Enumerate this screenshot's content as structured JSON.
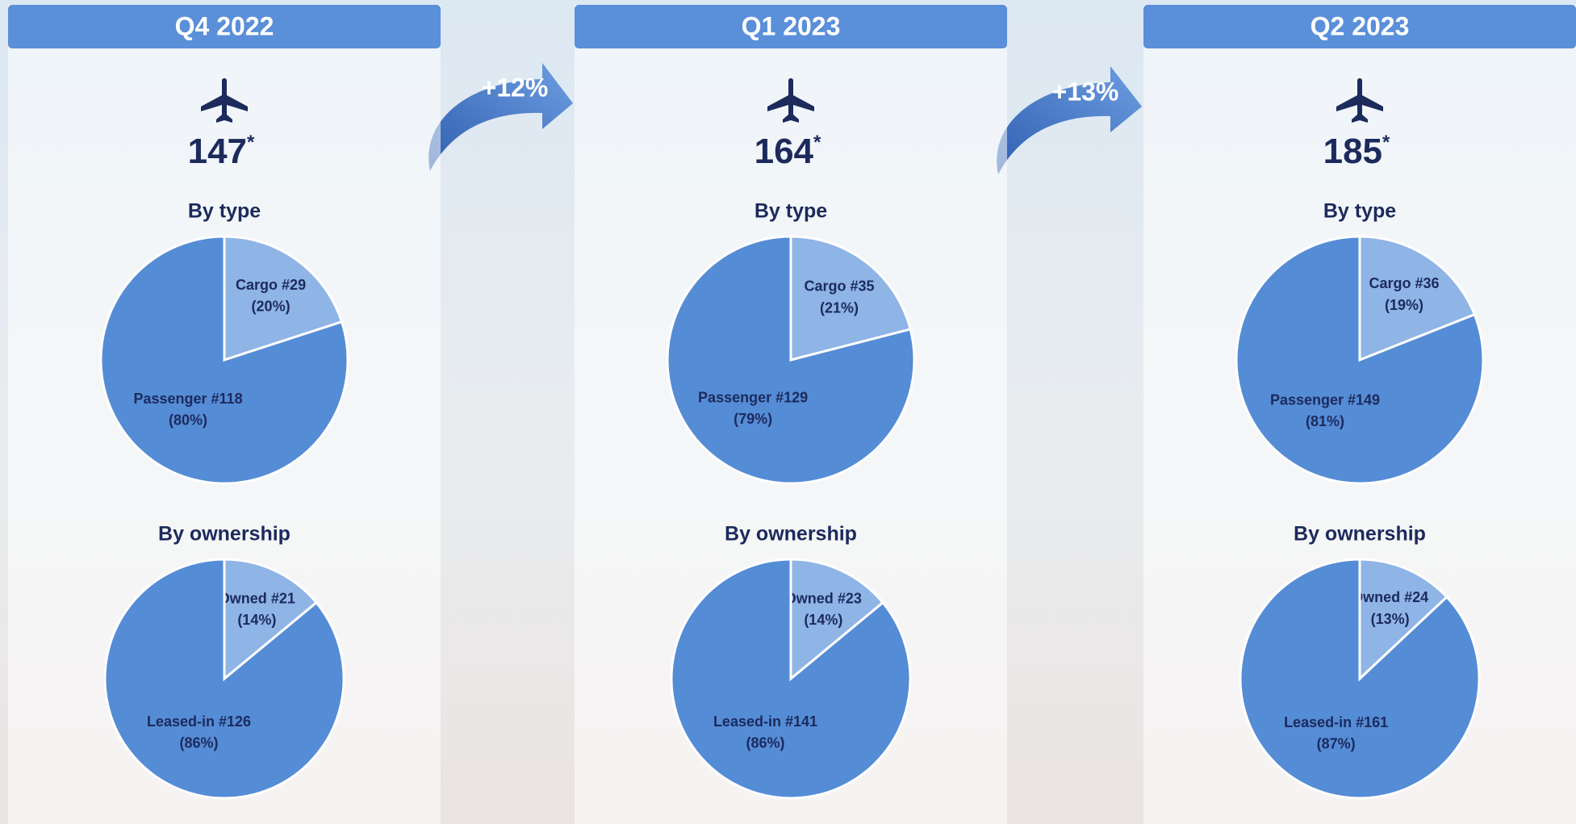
{
  "panels": [
    {
      "quarter": "Q4 2022",
      "total": 147,
      "total_mark": "*"
    },
    {
      "quarter": "Q1 2023",
      "total": 164,
      "total_mark": "*"
    },
    {
      "quarter": "Q2 2023",
      "total": 185,
      "total_mark": "*"
    }
  ],
  "growth": [
    "+12%",
    "+13%"
  ],
  "chart_data": [
    {
      "type": "pie",
      "title": "By type",
      "categories": [
        "Cargo",
        "Passenger"
      ],
      "count_labels": [
        "#29",
        "#118"
      ],
      "values": [
        20,
        80
      ],
      "value_labels": [
        "(20%)",
        "(80%)"
      ],
      "colors": [
        "#8fb4e6",
        "#558cd6"
      ]
    },
    {
      "type": "pie",
      "title": "By ownership",
      "categories": [
        "Owned",
        "Leased-in"
      ],
      "count_labels": [
        "#21",
        "#126"
      ],
      "values": [
        14,
        86
      ],
      "value_labels": [
        "(14%)",
        "(86%)"
      ],
      "colors": [
        "#8fb4e6",
        "#558cd6"
      ]
    },
    {
      "type": "pie",
      "title": "By type",
      "categories": [
        "Cargo",
        "Passenger"
      ],
      "count_labels": [
        "#35",
        "#129"
      ],
      "values": [
        21,
        79
      ],
      "value_labels": [
        "(21%)",
        "(79%)"
      ],
      "colors": [
        "#8fb4e6",
        "#558cd6"
      ]
    },
    {
      "type": "pie",
      "title": "By ownership",
      "categories": [
        "Owned",
        "Leased-in"
      ],
      "count_labels": [
        "#23",
        "#141"
      ],
      "values": [
        14,
        86
      ],
      "value_labels": [
        "(14%)",
        "(86%)"
      ],
      "colors": [
        "#8fb4e6",
        "#558cd6"
      ]
    },
    {
      "type": "pie",
      "title": "By type",
      "categories": [
        "Cargo",
        "Passenger"
      ],
      "count_labels": [
        "#36",
        "#149"
      ],
      "values": [
        19,
        81
      ],
      "value_labels": [
        "(19%)",
        "(81%)"
      ],
      "colors": [
        "#8fb4e6",
        "#558cd6"
      ]
    },
    {
      "type": "pie",
      "title": "By ownership",
      "categories": [
        "Owned",
        "Leased-in"
      ],
      "count_labels": [
        "#24",
        "#161"
      ],
      "values": [
        13,
        87
      ],
      "value_labels": [
        "(13%)",
        "(87%)"
      ],
      "colors": [
        "#8fb4e6",
        "#558cd6"
      ]
    }
  ]
}
